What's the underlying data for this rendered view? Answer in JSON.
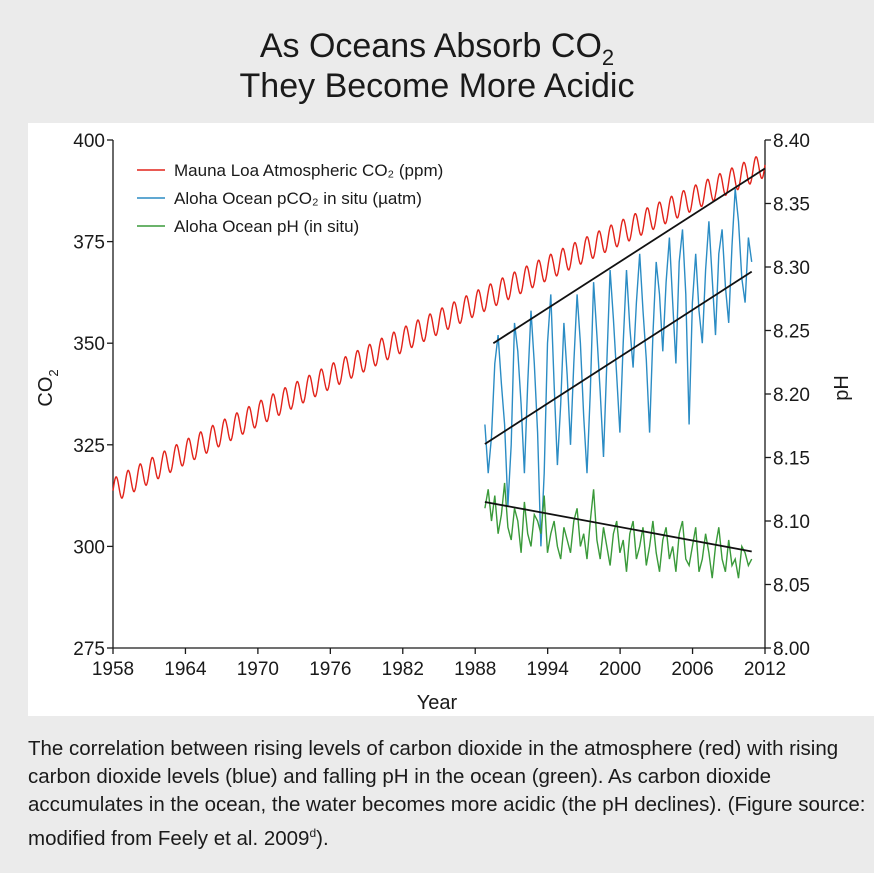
{
  "figure": {
    "title_line1": "As Oceans Absorb CO",
    "title_line1_sub": "2",
    "title_line2": "They Become More Acidic",
    "caption": "The correlation between rising levels of carbon dioxide in the atmosphere (red) with rising carbon dioxide levels (blue) and falling pH in the ocean (green). As carbon dioxide accumulates in the ocean, the water becomes more acidic (the pH declines). (Figure source: modified from Feely et al. 2009",
    "caption_sup": "d",
    "caption_end": ")."
  },
  "chart_data": {
    "type": "line",
    "xlabel": "Year",
    "ylabel_left": "CO",
    "ylabel_left_sub": "2",
    "ylabel_right": "pH",
    "xlim": [
      1958,
      2012
    ],
    "ylim_left": [
      275,
      400
    ],
    "ylim_right": [
      8.0,
      8.4
    ],
    "x_ticks": [
      1958,
      1964,
      1970,
      1976,
      1982,
      1988,
      1994,
      2000,
      2006,
      2012
    ],
    "y_ticks_left": [
      275,
      300,
      325,
      350,
      375,
      400
    ],
    "y_ticks_right": [
      "8.00",
      "8.05",
      "8.10",
      "8.15",
      "8.20",
      "8.25",
      "8.30",
      "8.35",
      "8.40"
    ],
    "grid": false,
    "legend_position": "top-left",
    "series": [
      {
        "name": "Mauna Loa Atmospheric CO₂ (ppm)",
        "color": "#e2231a",
        "axis": "left",
        "trend_start": [
          1958.0,
          313.7
        ],
        "trend_end": [
          2012.0,
          393.9
        ],
        "seasonal_amplitude": 3.0,
        "period_years": 1.0,
        "trend_line": {
          "x": [
            1989.5,
            2012.0
          ],
          "y": [
            350.0,
            393.0
          ]
        }
      },
      {
        "name": "Aloha Ocean pCO₂ in situ (µatm)",
        "color": "#2b8cc4",
        "axis": "left",
        "x_range": [
          1988.8,
          2010.9
        ],
        "values": [
          330,
          318,
          327,
          345,
          352,
          340,
          330,
          310,
          325,
          355,
          348,
          335,
          318,
          340,
          358,
          345,
          328,
          300,
          318,
          350,
          362,
          340,
          320,
          335,
          355,
          342,
          325,
          345,
          362,
          350,
          332,
          318,
          338,
          365,
          352,
          338,
          322,
          345,
          368,
          356,
          342,
          328,
          350,
          368,
          354,
          344,
          360,
          372,
          358,
          346,
          328,
          352,
          370,
          362,
          348,
          365,
          376,
          360,
          345,
          370,
          378,
          362,
          330,
          360,
          372,
          358,
          350,
          368,
          380,
          366,
          352,
          372,
          378,
          364,
          355,
          374,
          388,
          380,
          366,
          360,
          376,
          370
        ],
        "trend_line": {
          "x": [
            1988.8,
            2010.9
          ],
          "y": [
            325.2,
            367.6
          ]
        }
      },
      {
        "name": "Aloha Ocean pH (in situ)",
        "color": "#3a9a3a",
        "axis": "right",
        "x_range": [
          1988.8,
          2010.9
        ],
        "values": [
          8.11,
          8.125,
          8.1,
          8.12,
          8.09,
          8.105,
          8.13,
          8.095,
          8.085,
          8.11,
          8.1,
          8.075,
          8.115,
          8.09,
          8.08,
          8.105,
          8.1,
          8.09,
          8.12,
          8.075,
          8.09,
          8.1,
          8.08,
          8.07,
          8.095,
          8.085,
          8.075,
          8.1,
          8.11,
          8.08,
          8.09,
          8.07,
          8.1,
          8.125,
          8.085,
          8.07,
          8.095,
          8.08,
          8.065,
          8.09,
          8.1,
          8.075,
          8.085,
          8.06,
          8.09,
          8.1,
          8.07,
          8.08,
          8.095,
          8.065,
          8.08,
          8.1,
          8.075,
          8.06,
          8.085,
          8.095,
          8.07,
          8.08,
          8.06,
          8.09,
          8.1,
          8.07,
          8.065,
          8.08,
          8.095,
          8.06,
          8.07,
          8.09,
          8.075,
          8.055,
          8.08,
          8.095,
          8.07,
          8.06,
          8.085,
          8.065,
          8.07,
          8.055,
          8.08,
          8.075,
          8.065,
          8.07
        ],
        "trend_line": {
          "x": [
            1988.8,
            2010.9
          ],
          "y": [
            8.115,
            8.076
          ]
        }
      }
    ]
  }
}
